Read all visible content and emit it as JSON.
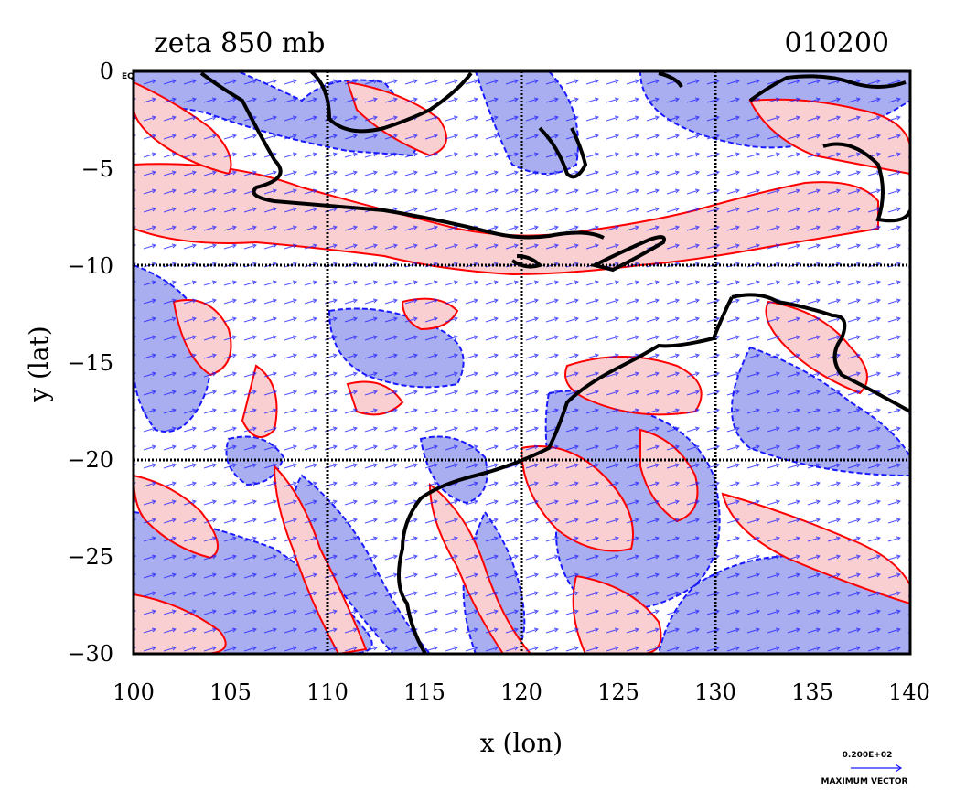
{
  "title_left": "zeta 850 mb",
  "title_right": "010200",
  "eq_label": "EQ",
  "xlabel": "x (lon)",
  "ylabel": "y (lat)",
  "x_ticks": [
    "100",
    "105",
    "110",
    "115",
    "120",
    "125",
    "130",
    "135",
    "140"
  ],
  "y_ticks": [
    "0",
    "−5",
    "−10",
    "−15",
    "−20",
    "−25",
    "−30"
  ],
  "legend": {
    "value": "0.200E+02",
    "label": "MAXIMUM VECTOR"
  },
  "map": {
    "lon_range": [
      100,
      140
    ],
    "lat_range": [
      -30,
      0
    ],
    "grid_lons": [
      110,
      120,
      130
    ],
    "grid_lats": [
      -10,
      -20
    ],
    "colors": {
      "positive_fill": "#f9cfd2",
      "positive_contour": "#ff0000",
      "negative_fill": "#a9aef0",
      "negative_contour": "#1a1aff",
      "vectors": "#1a1aff",
      "coast": "#000000"
    }
  }
}
